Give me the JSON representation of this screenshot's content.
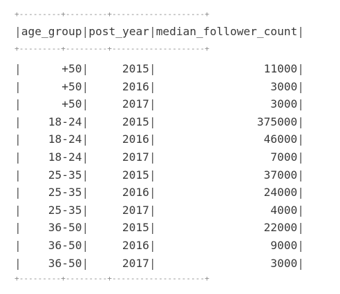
{
  "table": {
    "border_top": "+---------+---------+--------------------+",
    "border_header": "+---------+---------+--------------------+",
    "border_bottom": "+---------+---------+--------------------+",
    "headers": [
      "age_group",
      "post_year",
      "median_follower_count"
    ],
    "rows": [
      {
        "age_group": "+50",
        "post_year": "2015",
        "median_follower_count": "11000"
      },
      {
        "age_group": "+50",
        "post_year": "2016",
        "median_follower_count": "3000"
      },
      {
        "age_group": "+50",
        "post_year": "2017",
        "median_follower_count": "3000"
      },
      {
        "age_group": "18-24",
        "post_year": "2015",
        "median_follower_count": "375000"
      },
      {
        "age_group": "18-24",
        "post_year": "2016",
        "median_follower_count": "46000"
      },
      {
        "age_group": "18-24",
        "post_year": "2017",
        "median_follower_count": "7000"
      },
      {
        "age_group": "25-35",
        "post_year": "2015",
        "median_follower_count": "37000"
      },
      {
        "age_group": "25-35",
        "post_year": "2016",
        "median_follower_count": "24000"
      },
      {
        "age_group": "25-35",
        "post_year": "2017",
        "median_follower_count": "4000"
      },
      {
        "age_group": "36-50",
        "post_year": "2015",
        "median_follower_count": "22000"
      },
      {
        "age_group": "36-50",
        "post_year": "2016",
        "median_follower_count": "9000"
      },
      {
        "age_group": "36-50",
        "post_year": "2017",
        "median_follower_count": "3000"
      }
    ]
  }
}
